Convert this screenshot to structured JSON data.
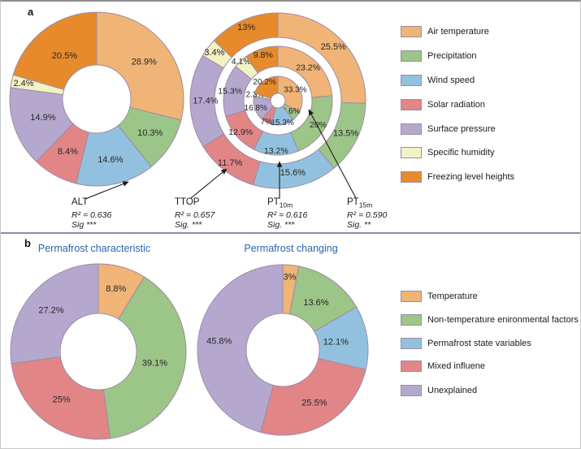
{
  "figure": {
    "panel_a_label": "a",
    "panel_b_label": "b"
  },
  "palette": {
    "air_temperature": "#F0B477",
    "precipitation": "#9CC588",
    "wind_speed": "#92C1DF",
    "solar_radiation": "#E18587",
    "surface_pressure": "#B5A8CE",
    "specific_humidity": "#F2F2C3",
    "freezing_level_heights": "#E78A2B",
    "temperature": "#F0B477",
    "non_temperature_factors": "#9CC588",
    "permafrost_state_variables": "#92C1DF",
    "mixed_influence": "#E18587",
    "unexplained": "#B5A8CE",
    "slice_border": "#9D8BA7",
    "title_blue": "#2864AF",
    "separator": "#9886A8",
    "arrow": "#1a1a1a",
    "label_text": "#262626"
  },
  "legend_a": {
    "items": [
      {
        "label": "Air temperature",
        "color_key": "air_temperature"
      },
      {
        "label": "Precipitation",
        "color_key": "precipitation"
      },
      {
        "label": "Wind speed",
        "color_key": "wind_speed"
      },
      {
        "label": "Solar radiation",
        "color_key": "solar_radiation"
      },
      {
        "label": "Surface pressure",
        "color_key": "surface_pressure"
      },
      {
        "label": "Specific humidity",
        "color_key": "specific_humidity"
      },
      {
        "label": "Freezing level heights",
        "color_key": "freezing_level_heights"
      }
    ]
  },
  "legend_b": {
    "items": [
      {
        "label": "Temperature",
        "color_key": "temperature"
      },
      {
        "label": "Non-temperature enironmental factors",
        "color_key": "non_temperature_factors"
      },
      {
        "label": "Permafrost state variables",
        "color_key": "permafrost_state_variables"
      },
      {
        "label": "Mixed influene",
        "color_key": "mixed_influence"
      },
      {
        "label": "Unexplained",
        "color_key": "unexplained"
      }
    ]
  },
  "titles_b": {
    "left": "Permafrost characteristic",
    "right": "Permafrost changing"
  },
  "annotations": [
    {
      "title": "ALT",
      "title_sub": "",
      "r2": "R² = 0.636",
      "sig": "Sig ***"
    },
    {
      "title": "TTOP",
      "title_sub": "",
      "r2": "R² = 0.657",
      "sig": "Sig. ***"
    },
    {
      "title": "PT",
      "title_sub": "10m",
      "r2": "R² = 0.616",
      "sig": "Sig. ***"
    },
    {
      "title": "PT",
      "title_sub": "15m",
      "r2": "R² = 0.590",
      "sig": "Sig. **"
    }
  ],
  "chart_data": [
    {
      "type": "pie",
      "name": "ALT variance donut",
      "categories": [
        "Air temperature",
        "Precipitation",
        "Wind speed",
        "Solar radiation",
        "Surface pressure",
        "Specific humidity",
        "Freezing level heights"
      ],
      "series": [
        {
          "name": "ALT",
          "values": [
            28.9,
            10.3,
            14.6,
            8.4,
            14.9,
            2.4,
            20.5
          ],
          "labels": [
            "28.9%",
            "10.3%",
            "14.6%",
            "8.4%",
            "14.9%",
            "2.4%",
            "20.5%"
          ],
          "color_keys": [
            "air_temperature",
            "precipitation",
            "wind_speed",
            "solar_radiation",
            "surface_pressure",
            "specific_humidity",
            "freezing_level_heights"
          ]
        }
      ],
      "legend_position": "right",
      "start_angle_deg": 0,
      "direction": "clockwise"
    },
    {
      "type": "nested-pie",
      "name": "TTOP / PT10m / PT15m variance rings (outer to inner)",
      "categories": [
        "Air temperature",
        "Precipitation",
        "Wind speed",
        "Solar radiation",
        "Surface pressure",
        "Specific humidity",
        "Freezing level heights"
      ],
      "series": [
        {
          "name": "TTOP",
          "values": [
            25.5,
            13.5,
            15.6,
            11.7,
            17.4,
            3.4,
            13
          ],
          "labels": [
            "25.5%",
            "13.5%",
            "15.6%",
            "11.7%",
            "17.4%",
            "3.4%",
            "13%"
          ],
          "color_keys": [
            "air_temperature",
            "precipitation",
            "wind_speed",
            "solar_radiation",
            "surface_pressure",
            "specific_humidity",
            "freezing_level_heights"
          ]
        },
        {
          "name": "PT10m",
          "values": [
            23.2,
            20,
            13.2,
            12.9,
            15.3,
            4.1,
            9.8
          ],
          "labels": [
            "23.2%",
            "20%",
            "13.2%",
            "12.9%",
            "15.3%",
            "4.1%",
            "9.8%"
          ],
          "color_keys": [
            "air_temperature",
            "precipitation",
            "wind_speed",
            "solar_radiation",
            "surface_pressure",
            "specific_humidity",
            "freezing_level_heights"
          ]
        },
        {
          "name": "PT15m",
          "values": [
            33.3,
            6.6,
            15.3,
            7,
            16.8,
            2.3,
            20.2
          ],
          "labels": [
            "33.3%",
            "6.6%",
            "15.3%",
            "7%",
            "16.8%",
            "2.3%",
            "20.2%"
          ],
          "color_keys": [
            "air_temperature",
            "precipitation",
            "wind_speed",
            "solar_radiation",
            "surface_pressure",
            "specific_humidity",
            "freezing_level_heights"
          ]
        }
      ],
      "start_angle_deg": 0,
      "direction": "clockwise"
    },
    {
      "type": "pie",
      "name": "Permafrost characteristic donut",
      "categories": [
        "Temperature",
        "Non-temperature enironmental factors",
        "Mixed influene",
        "Unexplained"
      ],
      "series": [
        {
          "name": "Permafrost characteristic",
          "values": [
            8.8,
            39.1,
            25,
            27.2
          ],
          "labels": [
            "8.8%",
            "39.1%",
            "25%",
            "27.2%"
          ],
          "color_keys": [
            "temperature",
            "non_temperature_factors",
            "mixed_influence",
            "unexplained"
          ]
        }
      ],
      "start_angle_deg": 0,
      "direction": "clockwise"
    },
    {
      "type": "pie",
      "name": "Permafrost changing donut",
      "categories": [
        "Temperature",
        "Non-temperature enironmental factors",
        "Permafrost state variables",
        "Mixed influene",
        "Unexplained"
      ],
      "series": [
        {
          "name": "Permafrost changing",
          "values": [
            3,
            13.6,
            12.1,
            25.5,
            45.8
          ],
          "labels": [
            "3%",
            "13.6%",
            "12.1%",
            "25.5%",
            "45.8%"
          ],
          "color_keys": [
            "temperature",
            "non_temperature_factors",
            "permafrost_state_variables",
            "mixed_influence",
            "unexplained"
          ]
        }
      ],
      "start_angle_deg": 0,
      "direction": "clockwise"
    }
  ]
}
